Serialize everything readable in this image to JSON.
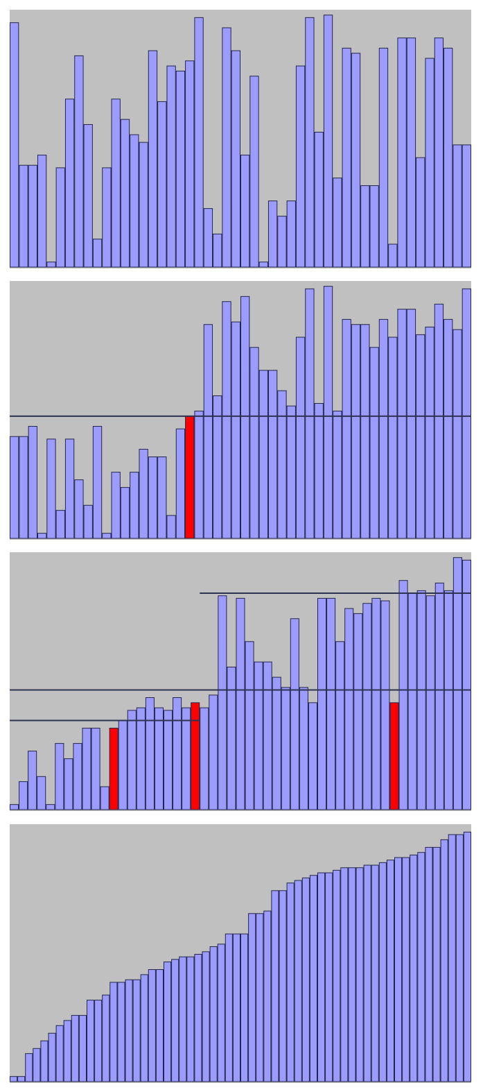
{
  "style": {
    "background": "#c0c0c0",
    "bar_fill": "#9c9cff",
    "bar_stroke": "#22264a",
    "pivot_fill": "#ff0000",
    "line_color": "#2e3352"
  },
  "chart_data": [
    {
      "type": "bar",
      "title": "",
      "xlabel": "",
      "ylabel": "",
      "ylim": [
        0,
        100
      ],
      "grid": false,
      "values": [
        96,
        40,
        40,
        44,
        2,
        39,
        66,
        83,
        56,
        11,
        39,
        66,
        58,
        52,
        49,
        85,
        65,
        79,
        77,
        81,
        98,
        23,
        13,
        94,
        85,
        44,
        75,
        2,
        26,
        20,
        26,
        79,
        98,
        53,
        99,
        35,
        86,
        84,
        32,
        32,
        86,
        9,
        90,
        90,
        43,
        82,
        90,
        86,
        48,
        48
      ]
    },
    {
      "type": "bar",
      "title": "",
      "xlabel": "",
      "ylabel": "",
      "ylim": [
        0,
        100
      ],
      "grid": false,
      "values": [
        40,
        40,
        44,
        2,
        39,
        11,
        39,
        23,
        13,
        44,
        2,
        26,
        20,
        26,
        35,
        32,
        32,
        9,
        43,
        48,
        50,
        84,
        56,
        93,
        85,
        95,
        75,
        66,
        66,
        58,
        52,
        79,
        98,
        53,
        99,
        50,
        86,
        84,
        84,
        75,
        86,
        79,
        90,
        90,
        80,
        83,
        92,
        86,
        82,
        98
      ],
      "pivots": [
        19
      ],
      "reference_lines": [
        {
          "value": 48,
          "from_bar": 0,
          "to_bar": 49
        }
      ]
    },
    {
      "type": "bar",
      "title": "",
      "xlabel": "",
      "ylabel": "",
      "ylim": [
        0,
        100
      ],
      "grid": false,
      "values": [
        2,
        11,
        23,
        13,
        2,
        26,
        20,
        26,
        32,
        32,
        9,
        32,
        35,
        39,
        40,
        44,
        40,
        39,
        44,
        40,
        42,
        40,
        45,
        84,
        56,
        83,
        66,
        58,
        58,
        52,
        48,
        75,
        48,
        42,
        83,
        83,
        66,
        79,
        77,
        81,
        83,
        82,
        42,
        90,
        85,
        86,
        84,
        89,
        86,
        99,
        98
      ],
      "pivots": [
        11,
        20,
        42
      ],
      "reference_lines": [
        {
          "value": 35,
          "from_bar": 0,
          "to_bar": 20
        },
        {
          "value": 47,
          "from_bar": 0,
          "to_bar": 50
        },
        {
          "value": 85,
          "from_bar": 21,
          "to_bar": 50
        }
      ]
    },
    {
      "type": "bar",
      "title": "",
      "xlabel": "",
      "ylabel": "",
      "ylim": [
        0,
        100
      ],
      "grid": false,
      "values": [
        2,
        2,
        11,
        13,
        16,
        19,
        22,
        24,
        26,
        26,
        32,
        32,
        34,
        39,
        39,
        40,
        40,
        42,
        44,
        44,
        47,
        48,
        49,
        49,
        50,
        51,
        53,
        54,
        58,
        58,
        58,
        66,
        66,
        67,
        75,
        75,
        78,
        79,
        80,
        81,
        82,
        82,
        83,
        84,
        84,
        84,
        85,
        85,
        86,
        87,
        88,
        88,
        89,
        90,
        92,
        92,
        95,
        97,
        97,
        98
      ]
    }
  ]
}
